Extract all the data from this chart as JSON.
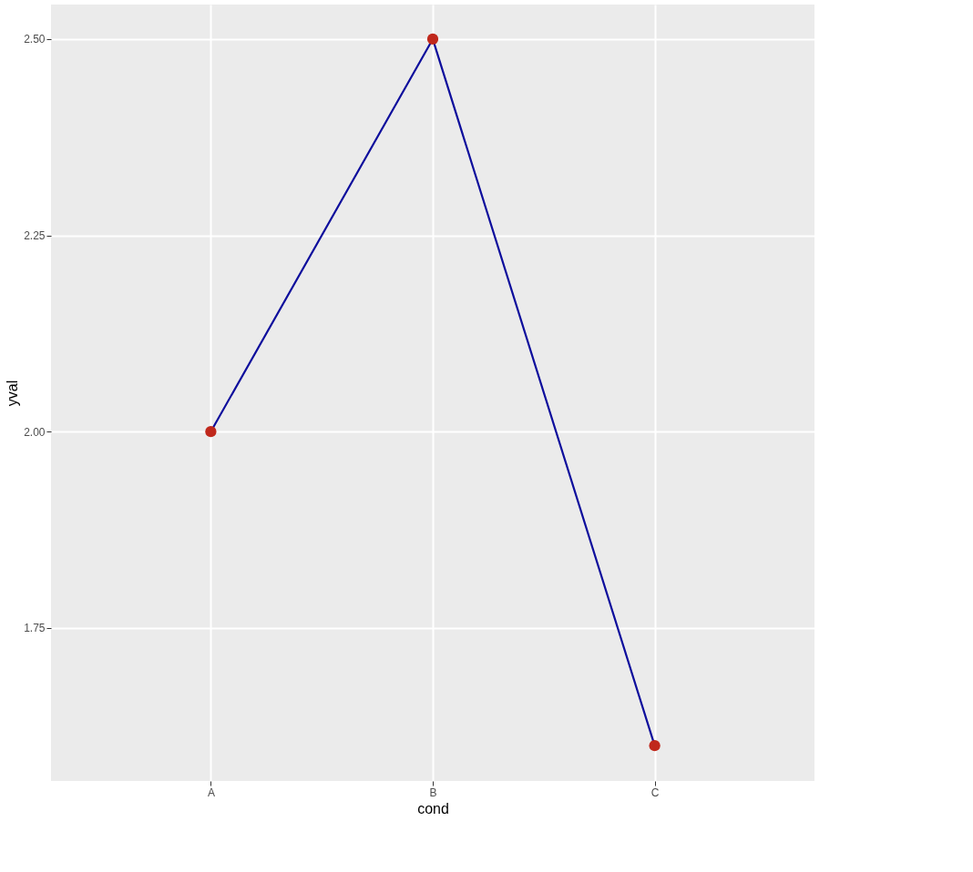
{
  "chart_data": {
    "type": "line",
    "xlabel": "cond",
    "ylabel": "yval",
    "categories": [
      "A",
      "B",
      "C"
    ],
    "series": [
      {
        "color": "#0d0d9c",
        "values": [
          2.0,
          2.5,
          1.6
        ],
        "marker": "none"
      },
      {
        "type": "scatter",
        "color": "#c0281c",
        "values": [
          2.0,
          2.5,
          1.6
        ],
        "marker": "circle"
      }
    ],
    "ylim": [
      1.555,
      2.544
    ],
    "yticks": [
      1.75,
      {
        "value": 2.0,
        "label": "2.00"
      },
      2.25,
      {
        "value": 2.5,
        "label": "2.50"
      }
    ],
    "grid": true
  }
}
